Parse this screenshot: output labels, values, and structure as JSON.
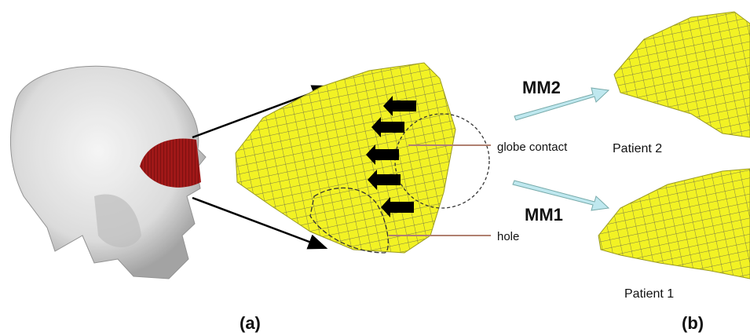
{
  "panel_a": {
    "annotations": [
      "globe contact",
      "hole"
    ],
    "label": "(a)"
  },
  "panel_b": {
    "methods": [
      "MM2",
      "MM1"
    ],
    "patients": [
      "Patient 2",
      "Patient 1"
    ],
    "label": "(b)"
  }
}
